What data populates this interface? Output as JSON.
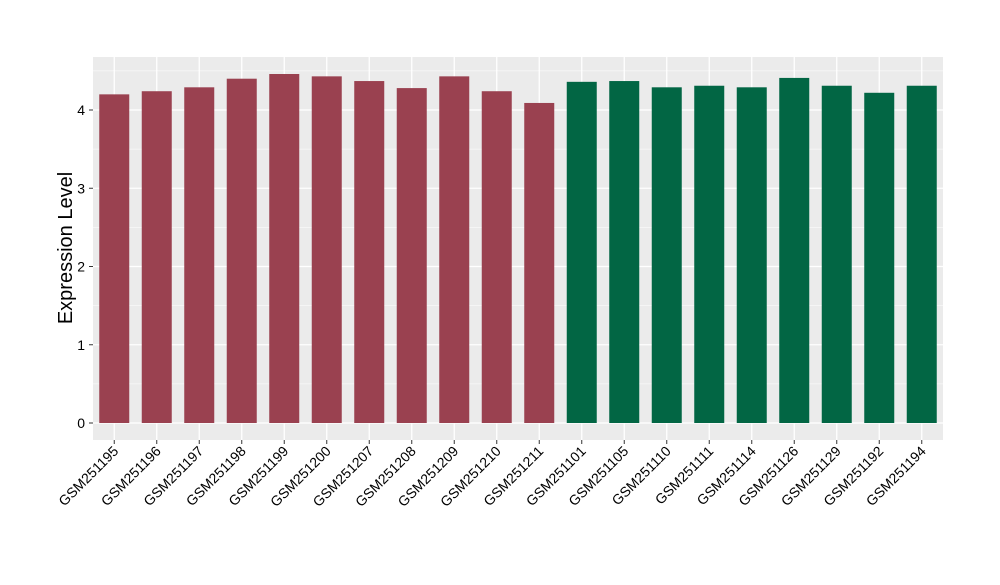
{
  "chart_data": {
    "type": "bar",
    "title": "",
    "xlabel": "",
    "ylabel": "Expression Level",
    "ylim": [
      -0.2,
      4.65
    ],
    "yticks": [
      0,
      1,
      2,
      3,
      4
    ],
    "grid": true,
    "categories": [
      "GSM251195",
      "GSM251196",
      "GSM251197",
      "GSM251198",
      "GSM251199",
      "GSM251200",
      "GSM251207",
      "GSM251208",
      "GSM251209",
      "GSM251210",
      "GSM251211",
      "GSM251101",
      "GSM251105",
      "GSM251110",
      "GSM251111",
      "GSM251114",
      "GSM251126",
      "GSM251129",
      "GSM251192",
      "GSM251194"
    ],
    "values": [
      4.2,
      4.24,
      4.29,
      4.4,
      4.46,
      4.43,
      4.37,
      4.28,
      4.43,
      4.24,
      4.09,
      4.36,
      4.37,
      4.29,
      4.31,
      4.29,
      4.41,
      4.31,
      4.22,
      4.31
    ],
    "groups": [
      0,
      0,
      0,
      0,
      0,
      0,
      0,
      0,
      0,
      0,
      0,
      1,
      1,
      1,
      1,
      1,
      1,
      1,
      1,
      1
    ],
    "group_colors": [
      "#9A4150",
      "#026644"
    ],
    "panel_color": "#EBEBEB"
  }
}
